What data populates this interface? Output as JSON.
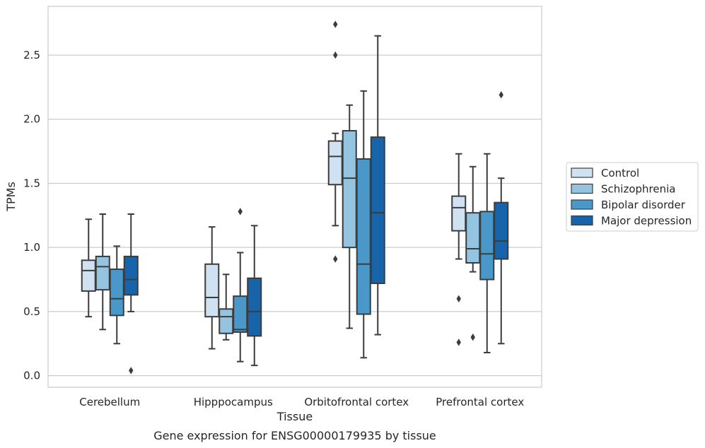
{
  "chart_data": {
    "type": "box",
    "title": "",
    "caption": "Gene expression for ENSG00000179935 by tissue",
    "xlabel": "Tissue",
    "ylabel": "TPMs",
    "ylim": [
      -0.09,
      2.88
    ],
    "yticks": [
      "0.0",
      "0.5",
      "1.0",
      "1.5",
      "2.0",
      "2.5"
    ],
    "grid": "horizontal",
    "legend_position": "right",
    "categories": [
      "Cerebellum",
      "Hipppocampus",
      "Orbitofrontal cortex",
      "Prefrontal cortex"
    ],
    "series": [
      {
        "name": "Control",
        "color": "#d0e1f2",
        "boxes": [
          {
            "whislo": 0.46,
            "q1": 0.66,
            "med": 0.82,
            "q3": 0.9,
            "whishi": 1.22,
            "fliers": []
          },
          {
            "whislo": 0.21,
            "q1": 0.46,
            "med": 0.61,
            "q3": 0.87,
            "whishi": 1.16,
            "fliers": []
          },
          {
            "whislo": 1.17,
            "q1": 1.49,
            "med": 1.71,
            "q3": 1.83,
            "whishi": 1.89,
            "fliers": [
              0.91,
              2.5,
              2.74
            ]
          },
          {
            "whislo": 0.91,
            "q1": 1.13,
            "med": 1.31,
            "q3": 1.4,
            "whishi": 1.73,
            "fliers": [
              0.26,
              0.6
            ]
          }
        ]
      },
      {
        "name": "Schizophrenia",
        "color": "#94c4df",
        "boxes": [
          {
            "whislo": 0.36,
            "q1": 0.67,
            "med": 0.85,
            "q3": 0.93,
            "whishi": 1.26,
            "fliers": []
          },
          {
            "whislo": 0.28,
            "q1": 0.33,
            "med": 0.46,
            "q3": 0.52,
            "whishi": 0.79,
            "fliers": []
          },
          {
            "whislo": 0.37,
            "q1": 1.0,
            "med": 1.54,
            "q3": 1.91,
            "whishi": 2.11,
            "fliers": []
          },
          {
            "whislo": 0.81,
            "q1": 0.88,
            "med": 0.99,
            "q3": 1.27,
            "whishi": 1.63,
            "fliers": [
              0.3
            ]
          }
        ]
      },
      {
        "name": "Bipolar disorder",
        "color": "#4a98c9",
        "boxes": [
          {
            "whislo": 0.25,
            "q1": 0.47,
            "med": 0.6,
            "q3": 0.83,
            "whishi": 1.01,
            "fliers": []
          },
          {
            "whislo": 0.11,
            "q1": 0.34,
            "med": 0.36,
            "q3": 0.62,
            "whishi": 0.96,
            "fliers": [
              1.28
            ]
          },
          {
            "whislo": 0.14,
            "q1": 0.48,
            "med": 0.87,
            "q3": 1.69,
            "whishi": 2.22,
            "fliers": []
          },
          {
            "whislo": 0.18,
            "q1": 0.75,
            "med": 0.95,
            "q3": 1.28,
            "whishi": 1.73,
            "fliers": []
          }
        ]
      },
      {
        "name": "Major depression",
        "color": "#1764ab",
        "boxes": [
          {
            "whislo": 0.5,
            "q1": 0.63,
            "med": 0.75,
            "q3": 0.93,
            "whishi": 1.26,
            "fliers": [
              0.04
            ]
          },
          {
            "whislo": 0.08,
            "q1": 0.31,
            "med": 0.5,
            "q3": 0.76,
            "whishi": 1.17,
            "fliers": []
          },
          {
            "whislo": 0.32,
            "q1": 0.72,
            "med": 1.27,
            "q3": 1.86,
            "whishi": 2.65,
            "fliers": []
          },
          {
            "whislo": 0.25,
            "q1": 0.91,
            "med": 1.05,
            "q3": 1.35,
            "whishi": 1.54,
            "fliers": [
              2.19
            ]
          }
        ]
      }
    ]
  }
}
